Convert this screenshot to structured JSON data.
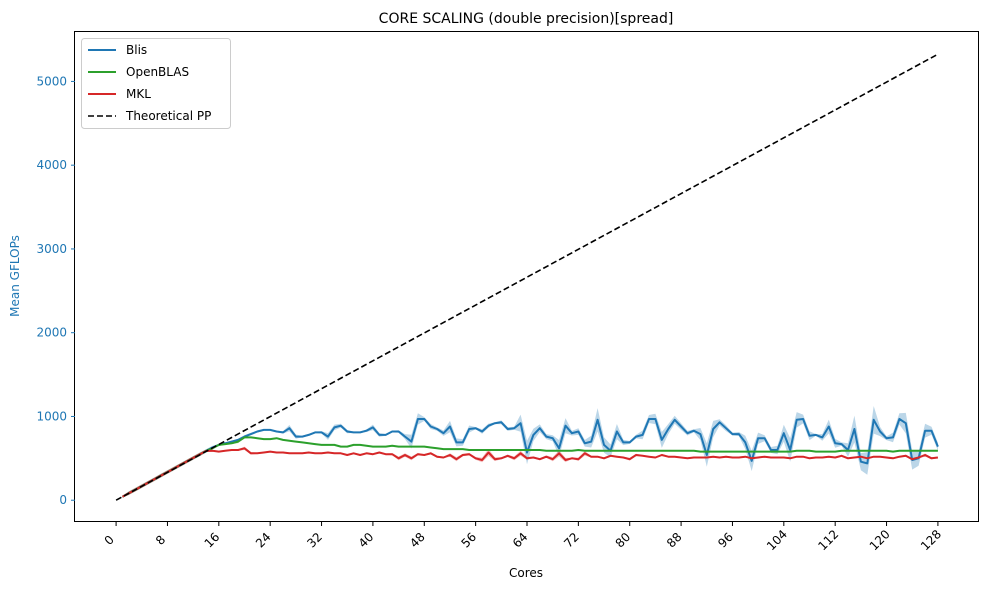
{
  "chart_data": {
    "type": "line",
    "title": "CORE SCALING (double precision)[spread]",
    "xlabel": "Cores",
    "ylabel": "Mean GFLOPs",
    "xlim": [
      -6.4,
      134.4
    ],
    "ylim": [
      -260,
      5590
    ],
    "xticks": [
      0,
      8,
      16,
      24,
      32,
      40,
      48,
      56,
      64,
      72,
      80,
      88,
      96,
      104,
      112,
      120,
      128
    ],
    "yticks": [
      0,
      1000,
      2000,
      3000,
      4000,
      5000
    ],
    "legend_position": "upper-left",
    "grid": false,
    "colors": {
      "ylabel": "#1f77b4",
      "yticks": "#1f77b4"
    },
    "series": [
      {
        "name": "Blis",
        "color": "#1f77b4",
        "style": "solid",
        "band": true,
        "x_start": 1,
        "x_step": 1,
        "values": [
          42,
          84,
          126,
          168,
          210,
          252,
          294,
          336,
          378,
          420,
          462,
          504,
          546,
          588,
          630,
          660,
          680,
          700,
          720,
          760,
          790,
          820,
          840,
          840,
          820,
          810,
          860,
          760,
          760,
          780,
          810,
          810,
          760,
          870,
          890,
          820,
          810,
          810,
          830,
          870,
          780,
          780,
          820,
          820,
          760,
          700,
          970,
          970,
          880,
          850,
          800,
          880,
          690,
          690,
          850,
          860,
          820,
          890,
          920,
          930,
          850,
          860,
          920,
          570,
          780,
          860,
          760,
          740,
          620,
          890,
          800,
          820,
          680,
          700,
          960,
          660,
          590,
          820,
          690,
          690,
          760,
          780,
          970,
          970,
          720,
          850,
          960,
          880,
          800,
          830,
          790,
          540,
          850,
          930,
          860,
          790,
          790,
          690,
          470,
          740,
          740,
          600,
          600,
          800,
          600,
          960,
          970,
          770,
          780,
          750,
          880,
          680,
          670,
          600,
          850,
          460,
          440,
          960,
          820,
          740,
          750,
          970,
          920,
          480,
          500,
          830,
          830,
          640
        ]
      },
      {
        "name": "OpenBLAS",
        "color": "#2ca02c",
        "style": "solid",
        "band": true,
        "x_start": 1,
        "x_step": 1,
        "values": [
          42,
          84,
          126,
          168,
          210,
          252,
          294,
          336,
          378,
          420,
          462,
          504,
          546,
          588,
          620,
          660,
          670,
          680,
          700,
          750,
          750,
          740,
          730,
          730,
          740,
          720,
          710,
          700,
          690,
          680,
          670,
          660,
          660,
          660,
          640,
          640,
          660,
          660,
          650,
          640,
          640,
          640,
          650,
          640,
          640,
          640,
          640,
          640,
          630,
          620,
          610,
          610,
          610,
          610,
          600,
          600,
          600,
          600,
          600,
          600,
          600,
          600,
          600,
          600,
          600,
          600,
          590,
          590,
          590,
          590,
          590,
          600,
          590,
          590,
          590,
          590,
          590,
          590,
          590,
          590,
          590,
          590,
          590,
          590,
          590,
          590,
          590,
          590,
          590,
          590,
          580,
          580,
          580,
          580,
          580,
          580,
          580,
          580,
          580,
          580,
          580,
          580,
          580,
          580,
          580,
          590,
          590,
          590,
          580,
          580,
          580,
          580,
          590,
          590,
          590,
          590,
          590,
          590,
          590,
          590,
          580,
          590,
          590,
          590,
          590,
          590,
          590,
          590
        ]
      },
      {
        "name": "MKL",
        "color": "#d62728",
        "style": "solid",
        "band": true,
        "x_start": 1,
        "x_step": 1,
        "values": [
          42,
          84,
          126,
          168,
          210,
          252,
          294,
          336,
          378,
          420,
          462,
          504,
          546,
          588,
          590,
          580,
          590,
          600,
          600,
          620,
          560,
          560,
          570,
          580,
          570,
          570,
          560,
          560,
          560,
          570,
          560,
          560,
          570,
          560,
          560,
          540,
          560,
          540,
          560,
          550,
          570,
          550,
          550,
          500,
          540,
          500,
          550,
          540,
          560,
          520,
          510,
          540,
          490,
          540,
          550,
          500,
          480,
          570,
          490,
          500,
          530,
          500,
          560,
          500,
          510,
          490,
          520,
          490,
          560,
          480,
          500,
          490,
          560,
          520,
          520,
          500,
          530,
          520,
          510,
          490,
          540,
          530,
          520,
          510,
          540,
          520,
          520,
          510,
          500,
          510,
          510,
          510,
          520,
          510,
          520,
          510,
          510,
          520,
          500,
          510,
          520,
          510,
          510,
          510,
          500,
          520,
          520,
          500,
          510,
          510,
          520,
          510,
          530,
          500,
          510,
          520,
          500,
          520,
          520,
          510,
          500,
          520,
          530,
          490,
          510,
          540,
          500,
          510
        ]
      },
      {
        "name": "Theoretical PP",
        "color": "#000000",
        "style": "dashed",
        "band": false,
        "x": [
          0,
          128
        ],
        "values": [
          0,
          5324.8
        ]
      }
    ]
  }
}
